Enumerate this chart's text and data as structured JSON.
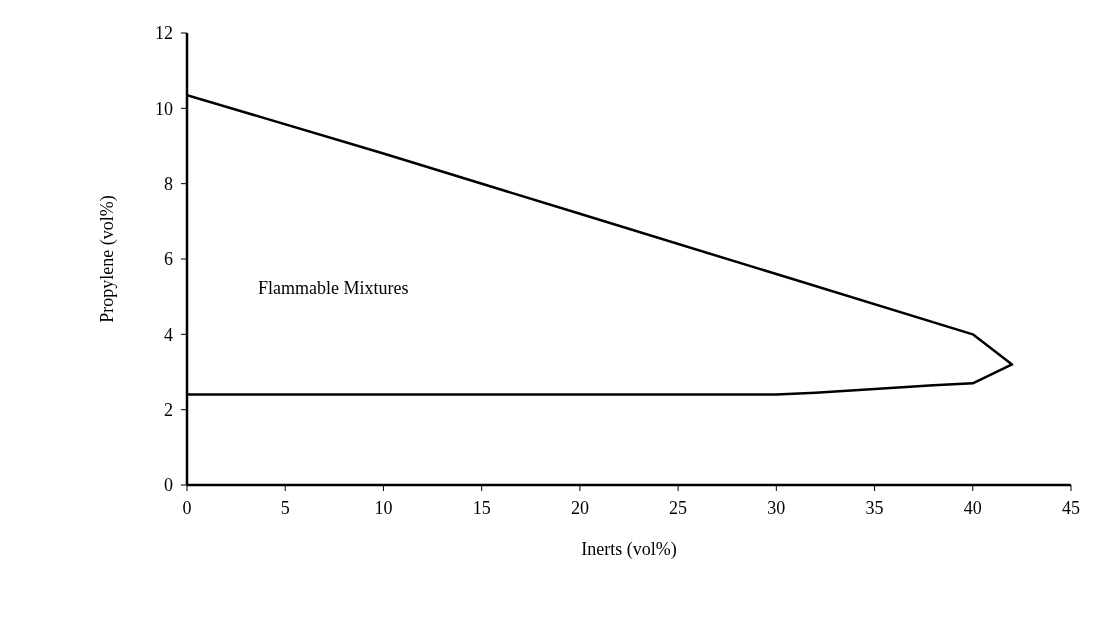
{
  "chart_data": {
    "type": "line",
    "xlabel": "Inerts (vol%)",
    "ylabel": "Propylene (vol%)",
    "annotations": [
      "Flammable Mixtures"
    ],
    "series": [
      {
        "color": "#000000",
        "x": [
          0,
          10,
          20,
          30,
          40,
          42,
          40,
          38,
          35,
          32,
          30,
          0
        ],
        "values": [
          10.35,
          8.8,
          7.2,
          5.6,
          4.0,
          3.2,
          2.7,
          2.65,
          2.55,
          2.45,
          2.4,
          2.4
        ]
      }
    ],
    "xlim": [
      0,
      45
    ],
    "xticks": [
      0,
      5,
      10,
      15,
      20,
      25,
      30,
      35,
      40,
      45
    ],
    "ylim": [
      0,
      12
    ],
    "yticks": [
      0,
      2,
      4,
      6,
      8,
      10,
      12
    ]
  }
}
